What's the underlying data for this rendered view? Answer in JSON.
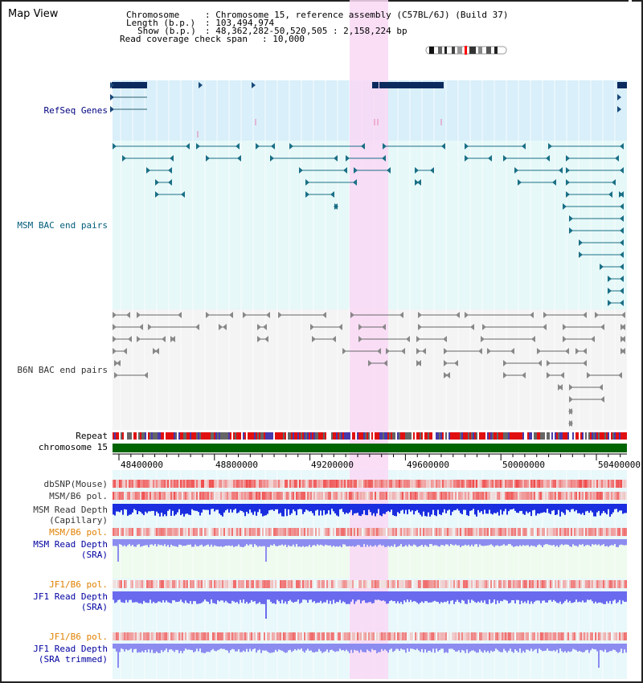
{
  "app": {
    "title": "Map View"
  },
  "header": {
    "chromosome_key": "Chromosome",
    "chromosome_val": ": Chromosome 15, reference assembly (C57BL/6J) (Build 37)",
    "length_key": "Length (b.p.)",
    "length_val": ": 103,494,974",
    "show_key": "Show (b.p.)",
    "show_val": ": 48,362,282-50,520,505 : 2,158,224 bp",
    "span_key": "Read coverage check span",
    "span_val": ": 10,000"
  },
  "tracks": {
    "refseq": "RefSeq Genes",
    "msm_bac": "MSM BAC end pairs",
    "b6n_bac": "B6N BAC end pairs",
    "repeat": "Repeat",
    "chromosome": "chromosome 15"
  },
  "axis_ticks": [
    "48400000",
    "48800000",
    "49200000",
    "49600000",
    "50000000",
    "50400000"
  ],
  "lower_tracks": [
    {
      "line1": "dbSNP(Mouse)",
      "line2": "",
      "color": "#333333"
    },
    {
      "line1": "MSM/B6 pol.",
      "line2": "",
      "color": "#333333"
    },
    {
      "line1": "MSM Read Depth",
      "line2": "(Capillary)",
      "color": "#333333"
    },
    {
      "line1": "MSM/B6 pol.",
      "line2": "",
      "color": "#e08000"
    },
    {
      "line1": "MSM Read Depth",
      "line2": "(SRA)",
      "color": "#0000a0"
    },
    {
      "line1": "JF1/B6 pol.",
      "line2": "",
      "color": "#e08000"
    },
    {
      "line1": "JF1 Read Depth",
      "line2": "(SRA)",
      "color": "#0000a0"
    },
    {
      "line1": "JF1/B6 pol.",
      "line2": "",
      "color": "#e08000"
    },
    {
      "line1": "JF1 Read Depth",
      "line2": "(SRA trimmed)",
      "color": "#0000a0"
    }
  ],
  "colors": {
    "refseq_label": "#000080",
    "msm_label": "#005c7a",
    "b6n_label": "#333333",
    "highlight": "#f9d8f5",
    "chromosome_bar": "#006400"
  }
}
